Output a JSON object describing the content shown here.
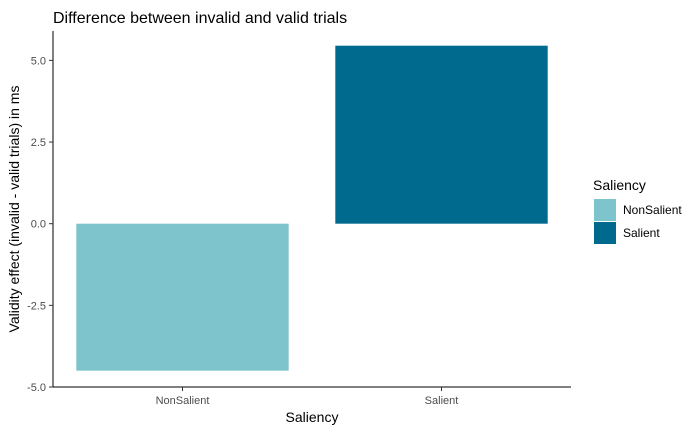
{
  "chart_data": {
    "type": "bar",
    "title": "Difference between invalid and valid trials",
    "xlabel": "Saliency",
    "ylabel": "Validity effect (invalid - valid trials) in ms",
    "categories": [
      "NonSalient",
      "Salient"
    ],
    "values": [
      -4.5,
      5.45
    ],
    "colors": [
      "#7ec4cc",
      "#006a8e"
    ],
    "ylim": [
      -5.0,
      5.9
    ],
    "yticks": [
      -5.0,
      -2.5,
      0.0,
      2.5,
      5.0
    ],
    "ytick_labels": [
      "-5.0",
      "-2.5",
      "0.0",
      "2.5",
      "5.0"
    ],
    "grid": false,
    "legend": {
      "title": "Saliency",
      "placement": "right",
      "entries": [
        "NonSalient",
        "Salient"
      ]
    }
  }
}
